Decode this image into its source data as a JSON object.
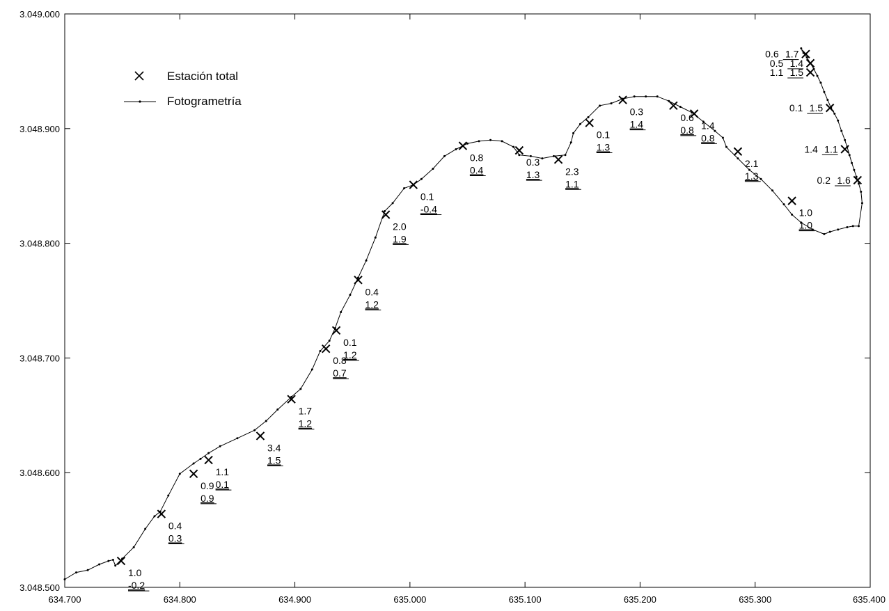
{
  "chart_data": {
    "type": "scatter",
    "xlim": [
      634.7,
      635.4
    ],
    "ylim": [
      3048.5,
      3049.0
    ],
    "x_ticks": [
      634.7,
      634.8,
      634.9,
      635.0,
      635.1,
      635.2,
      635.3,
      635.4
    ],
    "y_ticks": [
      3048.5,
      3048.6,
      3048.7,
      3048.8,
      3048.9,
      3049.0
    ],
    "x_tick_labels": [
      "634.700",
      "634.800",
      "634.900",
      "635.000",
      "635.100",
      "635.200",
      "635.300",
      "635.400"
    ],
    "y_tick_labels": [
      "3.048.500",
      "3.048.600",
      "3.048.700",
      "3.048.800",
      "3.048.900",
      "3.049.000"
    ],
    "grid": false,
    "legend_placement": "top-left",
    "legend": [
      {
        "name": "Estación total",
        "marker": "x"
      },
      {
        "name": "Fotogrametría",
        "marker": "line-dot"
      }
    ],
    "series": [
      {
        "name": "Fotogrametría",
        "x": [
          634.7,
          634.71,
          634.72,
          634.73,
          634.738,
          634.742,
          634.744,
          634.75,
          634.76,
          634.77,
          634.778,
          634.783,
          634.79,
          634.8,
          634.812,
          634.818,
          634.825,
          634.835,
          634.85,
          634.865,
          634.875,
          634.885,
          634.897,
          634.905,
          634.915,
          634.922,
          634.93,
          634.935,
          634.94,
          634.948,
          634.955,
          634.962,
          634.97,
          634.978,
          634.985,
          634.995,
          635.003,
          635.01,
          635.02,
          635.03,
          635.04,
          635.05,
          635.06,
          635.07,
          635.08,
          635.09,
          635.095,
          635.105,
          635.115,
          635.125,
          635.135,
          635.14,
          635.142,
          635.148,
          635.155,
          635.165,
          635.175,
          635.185,
          635.195,
          635.205,
          635.215,
          635.225,
          635.235,
          635.245,
          635.255,
          635.265,
          635.272,
          635.275,
          635.285,
          635.295,
          635.305,
          635.315,
          635.325,
          635.332,
          635.34,
          635.35,
          635.36,
          635.365,
          635.372,
          635.38,
          635.385,
          635.39,
          635.393,
          635.392,
          635.39,
          635.388,
          635.386,
          635.384,
          635.382,
          635.38,
          635.378,
          635.375,
          635.372,
          635.369,
          635.366,
          635.363,
          635.36,
          635.357,
          635.354,
          635.351,
          635.348,
          635.345,
          635.342,
          635.34
        ],
        "y": [
          3048.507,
          3048.513,
          3048.515,
          3048.52,
          3048.523,
          3048.524,
          3048.519,
          3048.525,
          3048.535,
          3048.551,
          3048.562,
          3048.566,
          3048.58,
          3048.599,
          3048.608,
          3048.612,
          3048.617,
          3048.623,
          3048.63,
          3048.637,
          3048.645,
          3048.655,
          3048.666,
          3048.673,
          3048.69,
          3048.706,
          3048.715,
          3048.726,
          3048.74,
          3048.755,
          3048.77,
          3048.785,
          3048.805,
          3048.828,
          3048.835,
          3048.848,
          3048.851,
          3048.856,
          3048.865,
          3048.876,
          3048.882,
          3048.887,
          3048.889,
          3048.89,
          3048.889,
          3048.884,
          3048.877,
          3048.876,
          3048.874,
          3048.876,
          3048.877,
          3048.888,
          3048.896,
          3048.904,
          3048.91,
          3048.92,
          3048.922,
          3048.926,
          3048.928,
          3048.928,
          3048.928,
          3048.924,
          3048.919,
          3048.914,
          3048.906,
          3048.898,
          3048.892,
          3048.884,
          3048.874,
          3048.864,
          3048.856,
          3048.846,
          3048.834,
          3048.825,
          3048.818,
          3048.812,
          3048.808,
          3048.81,
          3048.812,
          3048.814,
          3048.815,
          3048.815,
          3048.835,
          3048.845,
          3048.852,
          3048.858,
          3048.864,
          3048.87,
          3048.877,
          3048.884,
          3048.89,
          3048.898,
          3048.907,
          3048.913,
          3048.918,
          3048.925,
          3048.932,
          3048.94,
          3048.946,
          3048.952,
          3048.957,
          3048.962,
          3048.966,
          3048.97
        ]
      },
      {
        "name": "Estación total",
        "points": [
          {
            "x": 634.749,
            "y": 3048.523,
            "a": "1.0",
            "b": "-0.2",
            "pos": "below"
          },
          {
            "x": 634.784,
            "y": 3048.564,
            "a": "0.4",
            "b": "0.3",
            "pos": "below"
          },
          {
            "x": 634.812,
            "y": 3048.599,
            "a": "0.9",
            "b": "0.9",
            "pos": "below"
          },
          {
            "x": 634.825,
            "y": 3048.611,
            "a": "1.1",
            "b": "0.1",
            "pos": "below"
          },
          {
            "x": 634.87,
            "y": 3048.632,
            "a": "3.4",
            "b": "1.5",
            "pos": "below"
          },
          {
            "x": 634.897,
            "y": 3048.664,
            "a": "1.7",
            "b": "1.2",
            "pos": "below"
          },
          {
            "x": 634.927,
            "y": 3048.708,
            "a": "0.8",
            "b": "0.7",
            "pos": "below"
          },
          {
            "x": 634.936,
            "y": 3048.724,
            "a": "0.1",
            "b": "1.2",
            "pos": "below"
          },
          {
            "x": 634.955,
            "y": 3048.768,
            "a": "0.4",
            "b": "1.2",
            "pos": "below"
          },
          {
            "x": 634.979,
            "y": 3048.825,
            "a": "2.0",
            "b": "1.9",
            "pos": "below"
          },
          {
            "x": 635.003,
            "y": 3048.851,
            "a": "0.1",
            "b": "-0.4",
            "pos": "below"
          },
          {
            "x": 635.046,
            "y": 3048.885,
            "a": "0.8",
            "b": "0.4",
            "pos": "below"
          },
          {
            "x": 635.095,
            "y": 3048.881,
            "a": "0.3",
            "b": "1.3",
            "pos": "below"
          },
          {
            "x": 635.129,
            "y": 3048.873,
            "a": "2.3",
            "b": "1.1",
            "pos": "below"
          },
          {
            "x": 635.156,
            "y": 3048.905,
            "a": "0.1",
            "b": "1.3",
            "pos": "below"
          },
          {
            "x": 635.185,
            "y": 3048.925,
            "a": "0.3",
            "b": "1.4",
            "pos": "below"
          },
          {
            "x": 635.229,
            "y": 3048.92,
            "a": "0.6",
            "b": "0.8",
            "pos": "below"
          },
          {
            "x": 635.247,
            "y": 3048.913,
            "a": "1.4",
            "b": "0.8",
            "pos": "below"
          },
          {
            "x": 635.285,
            "y": 3048.88,
            "a": "2.1",
            "b": "1.3",
            "pos": "below"
          },
          {
            "x": 635.332,
            "y": 3048.837,
            "a": "1.0",
            "b": "1.0",
            "pos": "below"
          },
          {
            "x": 635.344,
            "y": 3048.965,
            "a": "0.6",
            "b": "1.7",
            "pos": "left"
          },
          {
            "x": 635.348,
            "y": 3048.957,
            "a": "0.5",
            "b": "1.4",
            "pos": "left"
          },
          {
            "x": 635.348,
            "y": 3048.949,
            "a": "1.1",
            "b": "1.5",
            "pos": "left"
          },
          {
            "x": 635.365,
            "y": 3048.918,
            "a": "0.1",
            "b": "1.5",
            "pos": "left"
          },
          {
            "x": 635.378,
            "y": 3048.882,
            "a": "1.4",
            "b": "1.1",
            "pos": "left"
          },
          {
            "x": 635.389,
            "y": 3048.855,
            "a": "0.2",
            "b": "1.6",
            "pos": "left"
          }
        ]
      }
    ]
  }
}
